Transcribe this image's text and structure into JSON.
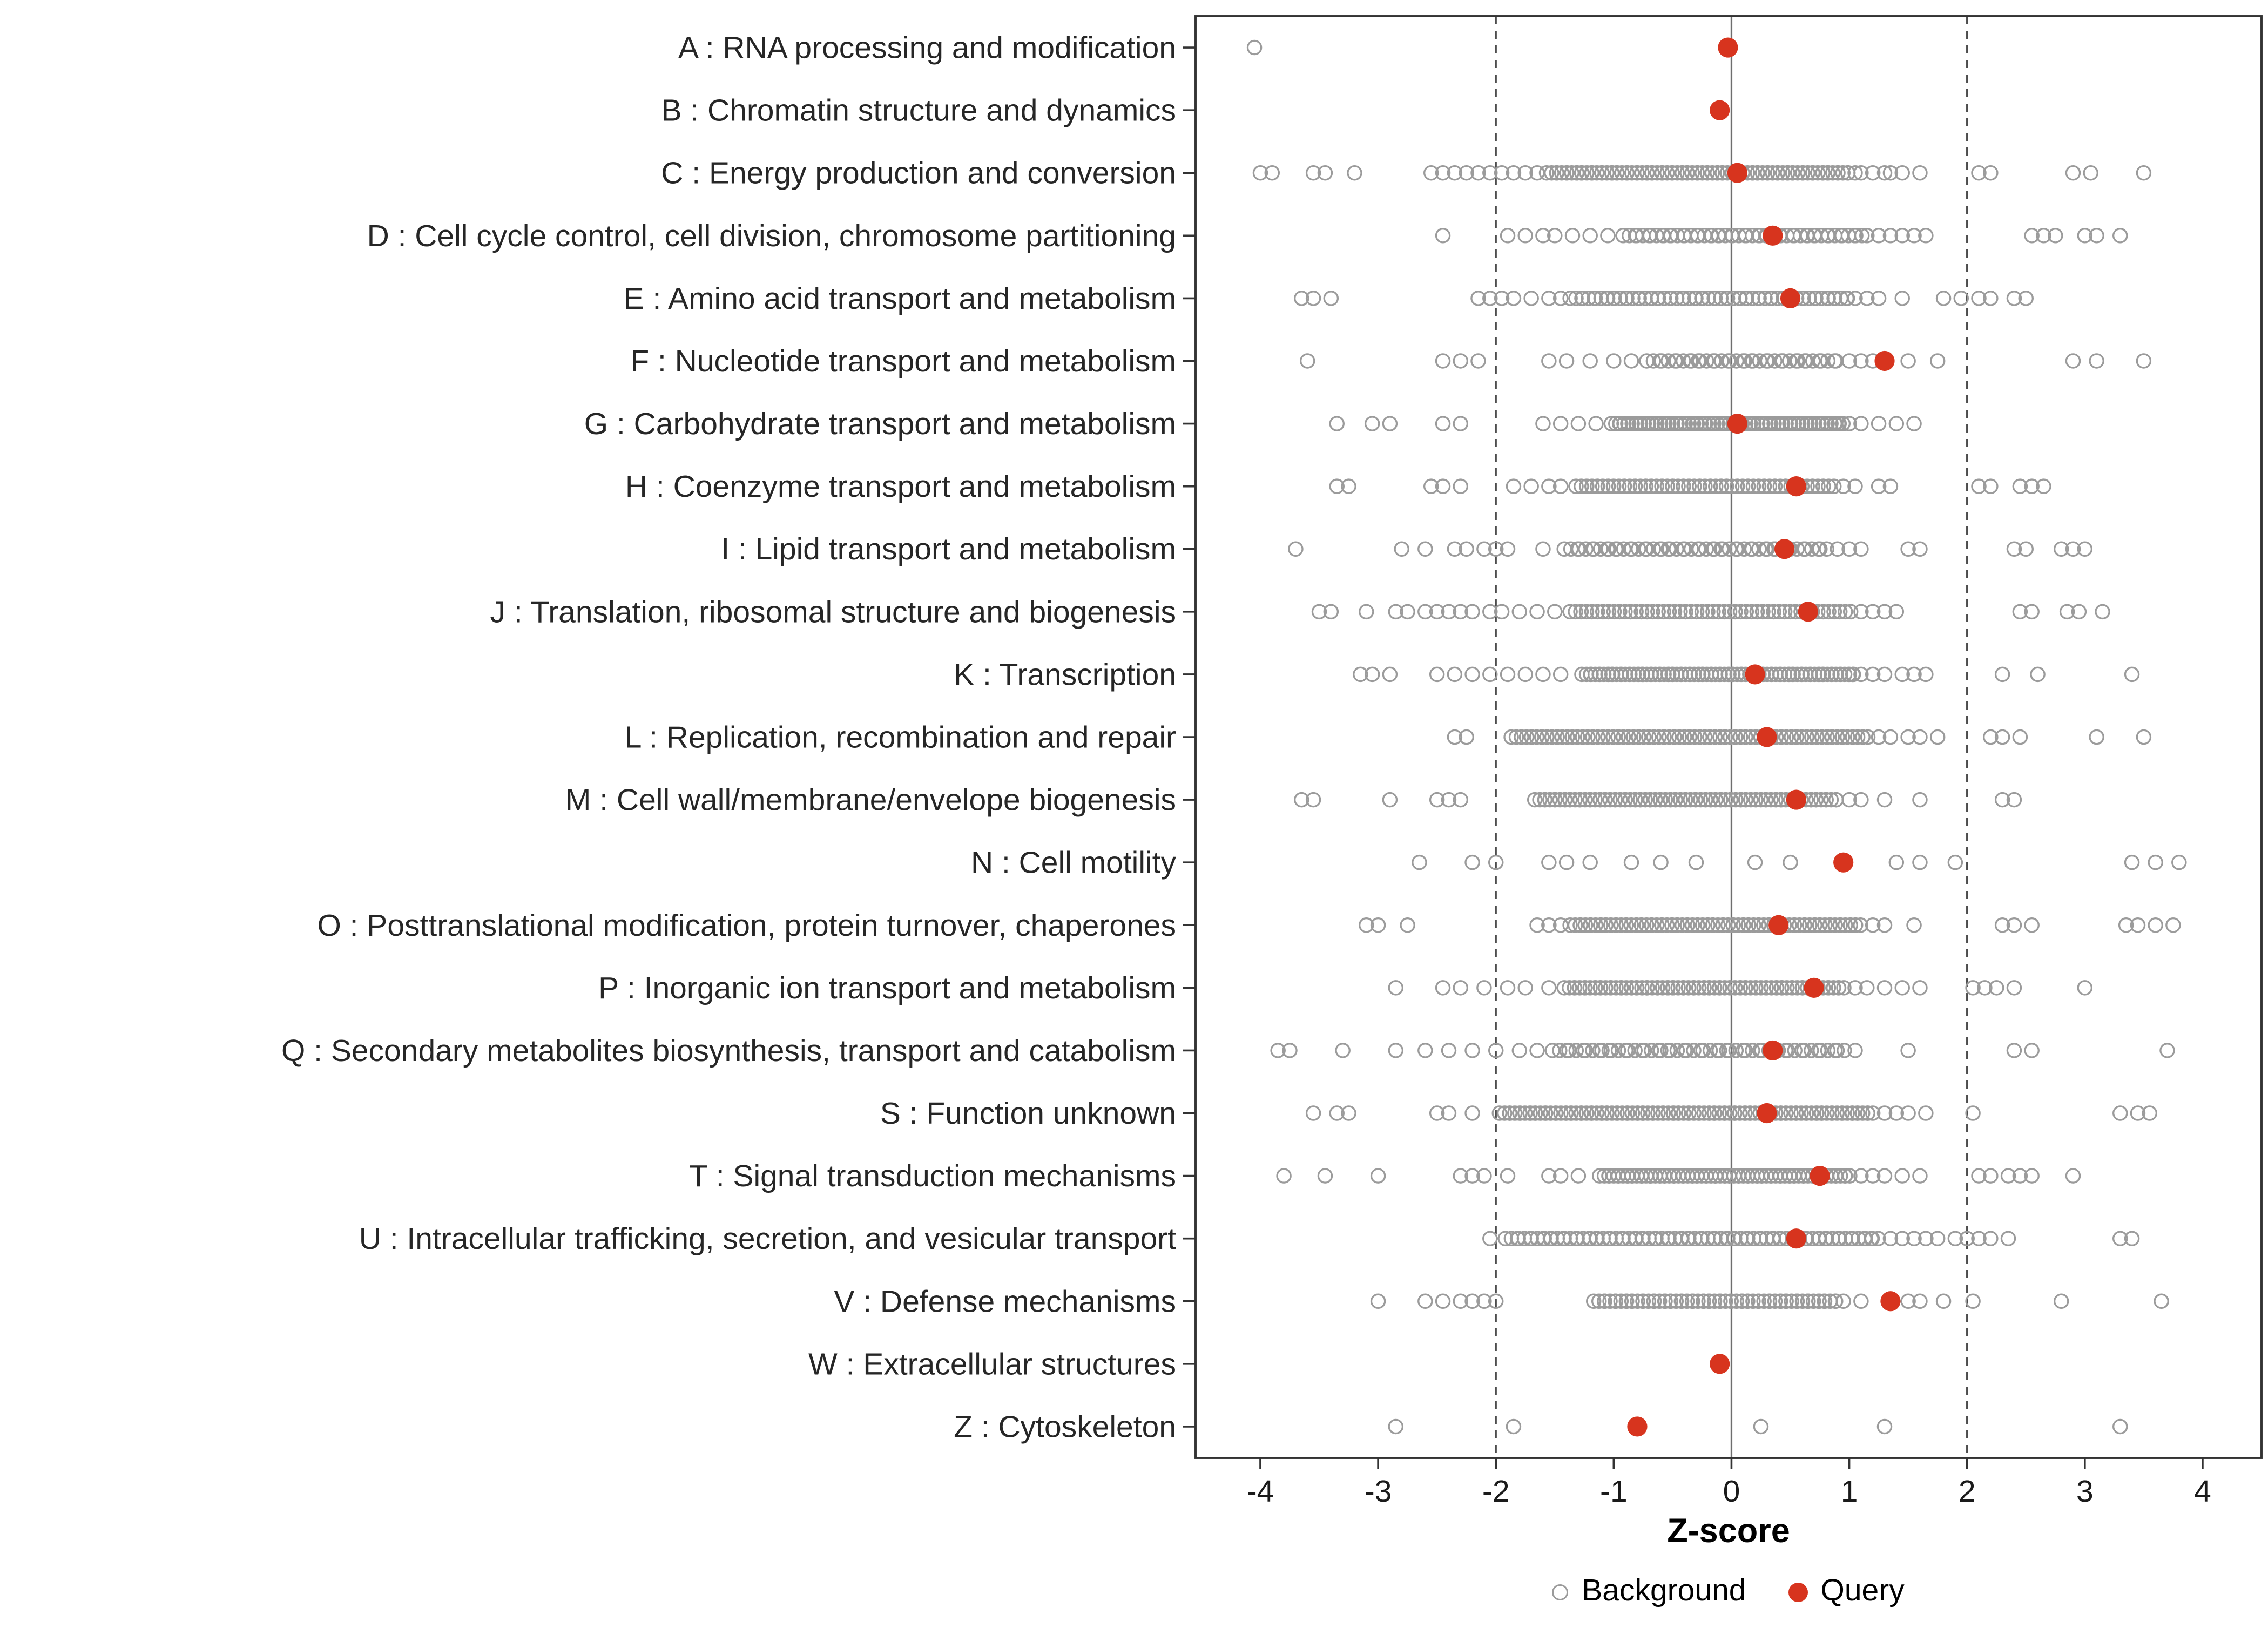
{
  "chart_data": {
    "type": "scatter",
    "subtype": "strip-plot-by-category",
    "title": "",
    "xlabel": "Z-score",
    "xlim": [
      -4.55,
      4.5
    ],
    "x_ticks": [
      -4,
      -3,
      -2,
      -1,
      0,
      1,
      2,
      3,
      4
    ],
    "x_tick_labels": [
      "-4",
      "-3",
      "-2",
      "-1",
      "0",
      "1",
      "2",
      "3",
      "4"
    ],
    "grid": false,
    "reference_lines": {
      "solid": [
        0
      ],
      "dashed": [
        -2,
        2
      ]
    },
    "legend_position": "bottom",
    "legend": [
      {
        "label": "Background",
        "marker": "open-circle",
        "color": "#9b9b9b"
      },
      {
        "label": "Query",
        "marker": "filled-circle",
        "color": "#d7341e"
      }
    ],
    "categories": [
      {
        "label": "A : RNA processing and modification",
        "query": -0.03,
        "background_dense": null,
        "background_scatter": [
          -4.05
        ]
      },
      {
        "label": "B : Chromatin structure and dynamics",
        "query": -0.1,
        "background_dense": null,
        "background_scatter": []
      },
      {
        "label": "C : Energy production and conversion",
        "query": 0.05,
        "background_dense": {
          "from": -1.55,
          "to": 1.0,
          "count": 95
        },
        "background_scatter": [
          -4.0,
          -3.9,
          -3.55,
          -3.45,
          -3.2,
          -2.55,
          -2.45,
          -2.35,
          -2.25,
          -2.15,
          -2.05,
          -1.95,
          -1.85,
          -1.75,
          -1.65,
          1.05,
          1.1,
          1.2,
          1.3,
          1.35,
          1.45,
          1.6,
          2.1,
          2.2,
          2.9,
          3.05,
          3.5
        ]
      },
      {
        "label": "D : Cell cycle control, cell division, chromosome partitioning",
        "query": 0.35,
        "background_dense": {
          "from": -0.9,
          "to": 1.1,
          "count": 55
        },
        "background_scatter": [
          -2.45,
          -1.9,
          -1.75,
          -1.6,
          -1.5,
          -1.35,
          -1.2,
          -1.05,
          1.15,
          1.25,
          1.35,
          1.45,
          1.55,
          1.65,
          2.55,
          2.65,
          2.75,
          3.0,
          3.1,
          3.3
        ]
      },
      {
        "label": "E : Amino acid transport and metabolism",
        "query": 0.5,
        "background_dense": {
          "from": -1.35,
          "to": 1.0,
          "count": 70
        },
        "background_scatter": [
          -3.65,
          -3.55,
          -3.4,
          -2.15,
          -2.05,
          -1.95,
          -1.85,
          -1.7,
          -1.55,
          -1.45,
          1.05,
          1.15,
          1.25,
          1.45,
          1.8,
          1.95,
          2.1,
          2.2,
          2.4,
          2.5
        ]
      },
      {
        "label": "F : Nucleotide transport and metabolism",
        "query": 1.3,
        "background_dense": {
          "from": -0.7,
          "to": 0.9,
          "count": 40
        },
        "background_scatter": [
          -3.6,
          -2.45,
          -2.3,
          -2.15,
          -1.55,
          -1.4,
          -1.2,
          -1.0,
          -0.85,
          1.0,
          1.1,
          1.2,
          1.5,
          1.75,
          2.9,
          3.1,
          3.5
        ]
      },
      {
        "label": "G : Carbohydrate transport and metabolism",
        "query": 0.05,
        "background_dense": {
          "from": -1.0,
          "to": 0.95,
          "count": 90
        },
        "background_scatter": [
          -3.35,
          -3.05,
          -2.9,
          -2.45,
          -2.3,
          -1.6,
          -1.45,
          -1.3,
          -1.15,
          1.0,
          1.1,
          1.25,
          1.4,
          1.55
        ]
      },
      {
        "label": "H : Coenzyme transport and metabolism",
        "query": 0.55,
        "background_dense": {
          "from": -1.3,
          "to": 0.85,
          "count": 75
        },
        "background_scatter": [
          -3.35,
          -3.25,
          -2.55,
          -2.45,
          -2.3,
          -1.85,
          -1.7,
          -1.55,
          -1.45,
          0.95,
          1.05,
          1.25,
          1.35,
          2.1,
          2.2,
          2.45,
          2.55,
          2.65
        ]
      },
      {
        "label": "I : Lipid transport and metabolism",
        "query": 0.45,
        "background_dense": {
          "from": -1.4,
          "to": 0.8,
          "count": 55
        },
        "background_scatter": [
          -3.7,
          -2.8,
          -2.6,
          -2.35,
          -2.25,
          -2.1,
          -2.0,
          -1.9,
          -1.6,
          0.9,
          1.0,
          1.1,
          1.5,
          1.6,
          2.4,
          2.5,
          2.8,
          2.9,
          3.0
        ]
      },
      {
        "label": "J : Translation, ribosomal structure and biogenesis",
        "query": 0.65,
        "background_dense": {
          "from": -1.35,
          "to": 1.0,
          "count": 80
        },
        "background_scatter": [
          -3.5,
          -3.4,
          -3.1,
          -2.85,
          -2.75,
          -2.6,
          -2.5,
          -2.4,
          -2.3,
          -2.2,
          -2.05,
          -1.95,
          -1.8,
          -1.65,
          -1.5,
          1.1,
          1.2,
          1.3,
          1.4,
          2.45,
          2.55,
          2.85,
          2.95,
          3.15
        ]
      },
      {
        "label": "K : Transcription",
        "query": 0.2,
        "background_dense": {
          "from": -1.25,
          "to": 1.05,
          "count": 100
        },
        "background_scatter": [
          -3.15,
          -3.05,
          -2.9,
          -2.5,
          -2.35,
          -2.2,
          -2.05,
          -1.9,
          -1.75,
          -1.6,
          -1.45,
          1.1,
          1.2,
          1.3,
          1.45,
          1.55,
          1.65,
          2.3,
          2.6,
          3.4
        ]
      },
      {
        "label": "L : Replication, recombination and repair",
        "query": 0.3,
        "background_dense": {
          "from": -1.85,
          "to": 1.15,
          "count": 110
        },
        "background_scatter": [
          -2.35,
          -2.25,
          1.25,
          1.35,
          1.5,
          1.6,
          1.75,
          2.2,
          2.3,
          2.45,
          3.1,
          3.5
        ]
      },
      {
        "label": "M : Cell wall/membrane/envelope biogenesis",
        "query": 0.55,
        "background_dense": {
          "from": -1.65,
          "to": 0.9,
          "count": 95
        },
        "background_scatter": [
          -3.65,
          -3.55,
          -2.9,
          -2.5,
          -2.4,
          -2.3,
          1.0,
          1.1,
          1.3,
          1.6,
          2.3,
          2.4
        ]
      },
      {
        "label": "N : Cell motility",
        "query": 0.95,
        "background_dense": null,
        "background_scatter": [
          -2.65,
          -2.2,
          -2.0,
          -1.55,
          -1.4,
          -1.2,
          -0.85,
          -0.6,
          -0.3,
          0.2,
          0.5,
          1.4,
          1.6,
          1.9,
          3.4,
          3.6,
          3.8
        ]
      },
      {
        "label": "O : Posttranslational modification, protein turnover, chaperones",
        "query": 0.4,
        "background_dense": {
          "from": -1.35,
          "to": 1.1,
          "count": 90
        },
        "background_scatter": [
          -3.1,
          -3.0,
          -2.75,
          -1.65,
          -1.55,
          -1.45,
          1.2,
          1.3,
          1.55,
          2.3,
          2.4,
          2.55,
          3.35,
          3.45,
          3.6,
          3.75
        ]
      },
      {
        "label": "P : Inorganic ion transport and metabolism",
        "query": 0.7,
        "background_dense": {
          "from": -1.4,
          "to": 0.95,
          "count": 85
        },
        "background_scatter": [
          -2.85,
          -2.45,
          -2.3,
          -2.1,
          -1.9,
          -1.75,
          -1.55,
          1.05,
          1.15,
          1.3,
          1.45,
          1.6,
          2.05,
          2.15,
          2.25,
          2.4,
          3.0
        ]
      },
      {
        "label": "Q : Secondary metabolites biosynthesis, transport and catabolism",
        "query": 0.35,
        "background_dense": {
          "from": -1.5,
          "to": 0.95,
          "count": 55
        },
        "background_scatter": [
          -3.85,
          -3.75,
          -3.3,
          -2.85,
          -2.6,
          -2.4,
          -2.2,
          -2.0,
          -1.8,
          -1.65,
          1.05,
          1.5,
          2.4,
          2.55,
          3.7
        ]
      },
      {
        "label": "S : Function unknown",
        "query": 0.3,
        "background_dense": {
          "from": -1.95,
          "to": 1.2,
          "count": 115
        },
        "background_scatter": [
          -3.55,
          -3.35,
          -3.25,
          -2.5,
          -2.4,
          -2.2,
          1.3,
          1.4,
          1.5,
          1.65,
          2.05,
          3.3,
          3.45,
          3.55
        ]
      },
      {
        "label": "T : Signal transduction mechanisms",
        "query": 0.75,
        "background_dense": {
          "from": -1.1,
          "to": 1.0,
          "count": 85
        },
        "background_scatter": [
          -3.8,
          -3.45,
          -3.0,
          -2.3,
          -2.2,
          -2.1,
          -1.9,
          -1.55,
          -1.45,
          -1.3,
          1.1,
          1.2,
          1.3,
          1.45,
          1.6,
          2.1,
          2.2,
          2.35,
          2.45,
          2.55,
          2.9
        ]
      },
      {
        "label": "U : Intracellular trafficking, secretion, and vesicular transport",
        "query": 0.55,
        "background_dense": {
          "from": -1.9,
          "to": 1.25,
          "count": 90
        },
        "background_scatter": [
          -2.05,
          1.35,
          1.45,
          1.55,
          1.65,
          1.75,
          1.9,
          2.0,
          2.1,
          2.2,
          2.35,
          3.3,
          3.4
        ]
      },
      {
        "label": "V : Defense mechanisms",
        "query": 1.35,
        "background_dense": {
          "from": -1.15,
          "to": 0.9,
          "count": 70
        },
        "background_scatter": [
          -3.0,
          -2.6,
          -2.45,
          -2.3,
          -2.2,
          -2.1,
          -2.0,
          0.95,
          1.1,
          1.5,
          1.6,
          1.8,
          2.05,
          2.8,
          3.65
        ]
      },
      {
        "label": "W : Extracellular structures",
        "query": -0.1,
        "background_dense": null,
        "background_scatter": []
      },
      {
        "label": "Z : Cytoskeleton",
        "query": -0.8,
        "background_dense": null,
        "background_scatter": [
          -2.85,
          -1.85,
          0.25,
          1.3,
          3.3
        ]
      }
    ]
  },
  "colors": {
    "query": "#d7341e",
    "background_stroke": "#9b9b9b",
    "panel_border": "#333333",
    "zero_line": "#6e6e6e",
    "dashed_line": "#4d4d4d",
    "axis_text": "#1a1a1a",
    "category_text": "#262626"
  }
}
